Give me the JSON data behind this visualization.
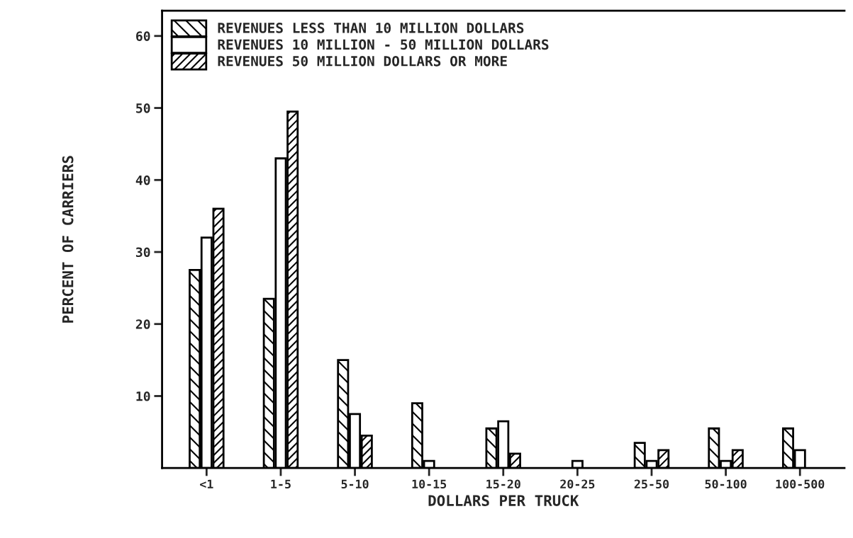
{
  "chart_data": {
    "type": "bar",
    "xlabel": "DOLLARS PER TRUCK",
    "ylabel": "PERCENT OF CARRIERS",
    "categories": [
      "<1",
      "1-5",
      "5-10",
      "10-15",
      "15-20",
      "20-25",
      "25-50",
      "50-100",
      "100-500"
    ],
    "series": [
      {
        "name": "REVENUES LESS THAN 10 MILLION DOLLARS",
        "color": "#000000",
        "values": [
          27.5,
          23.5,
          15,
          9,
          5.5,
          null,
          3.5,
          5.5,
          5.5
        ]
      },
      {
        "name": "REVENUES 10 MILLION - 50 MILLION DOLLARS",
        "color": "#000000",
        "values": [
          32,
          43,
          7.5,
          1,
          6.5,
          1,
          1,
          1,
          2.5
        ]
      },
      {
        "name": "REVENUES 50 MILLION DOLLARS OR MORE",
        "color": "#000000",
        "values": [
          36,
          49.5,
          4.5,
          null,
          2,
          null,
          2.5,
          2.5,
          null
        ]
      }
    ],
    "ylim": [
      0,
      63.5
    ],
    "yticks": [
      10,
      20,
      30,
      40,
      50,
      60
    ],
    "grid": false,
    "legend": "top left"
  }
}
